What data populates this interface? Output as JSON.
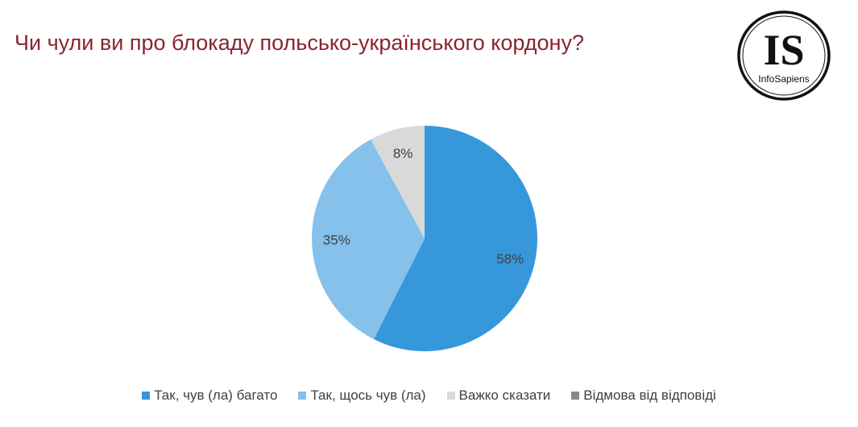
{
  "header": {
    "title": "Чи чули ви про блокаду польсько-українського кордону?"
  },
  "logo": {
    "letters": "IS",
    "name": "InfoSapiens"
  },
  "chart_data": {
    "type": "pie",
    "title": "Чи чули ви про блокаду польсько-українського кордону?",
    "categories": [
      "Так, чув (ла) багато",
      "Так, щось чув (ла)",
      "Важко сказати",
      "Відмова від відповіді"
    ],
    "values": [
      58,
      35,
      8,
      0
    ],
    "labels": [
      "58%",
      "35%",
      "8%",
      ""
    ],
    "colors": [
      "#3698db",
      "#85c1ea",
      "#d9d9d9",
      "#7f8c8d"
    ],
    "legend_position": "bottom",
    "start_angle_deg": 0,
    "direction": "clockwise"
  }
}
